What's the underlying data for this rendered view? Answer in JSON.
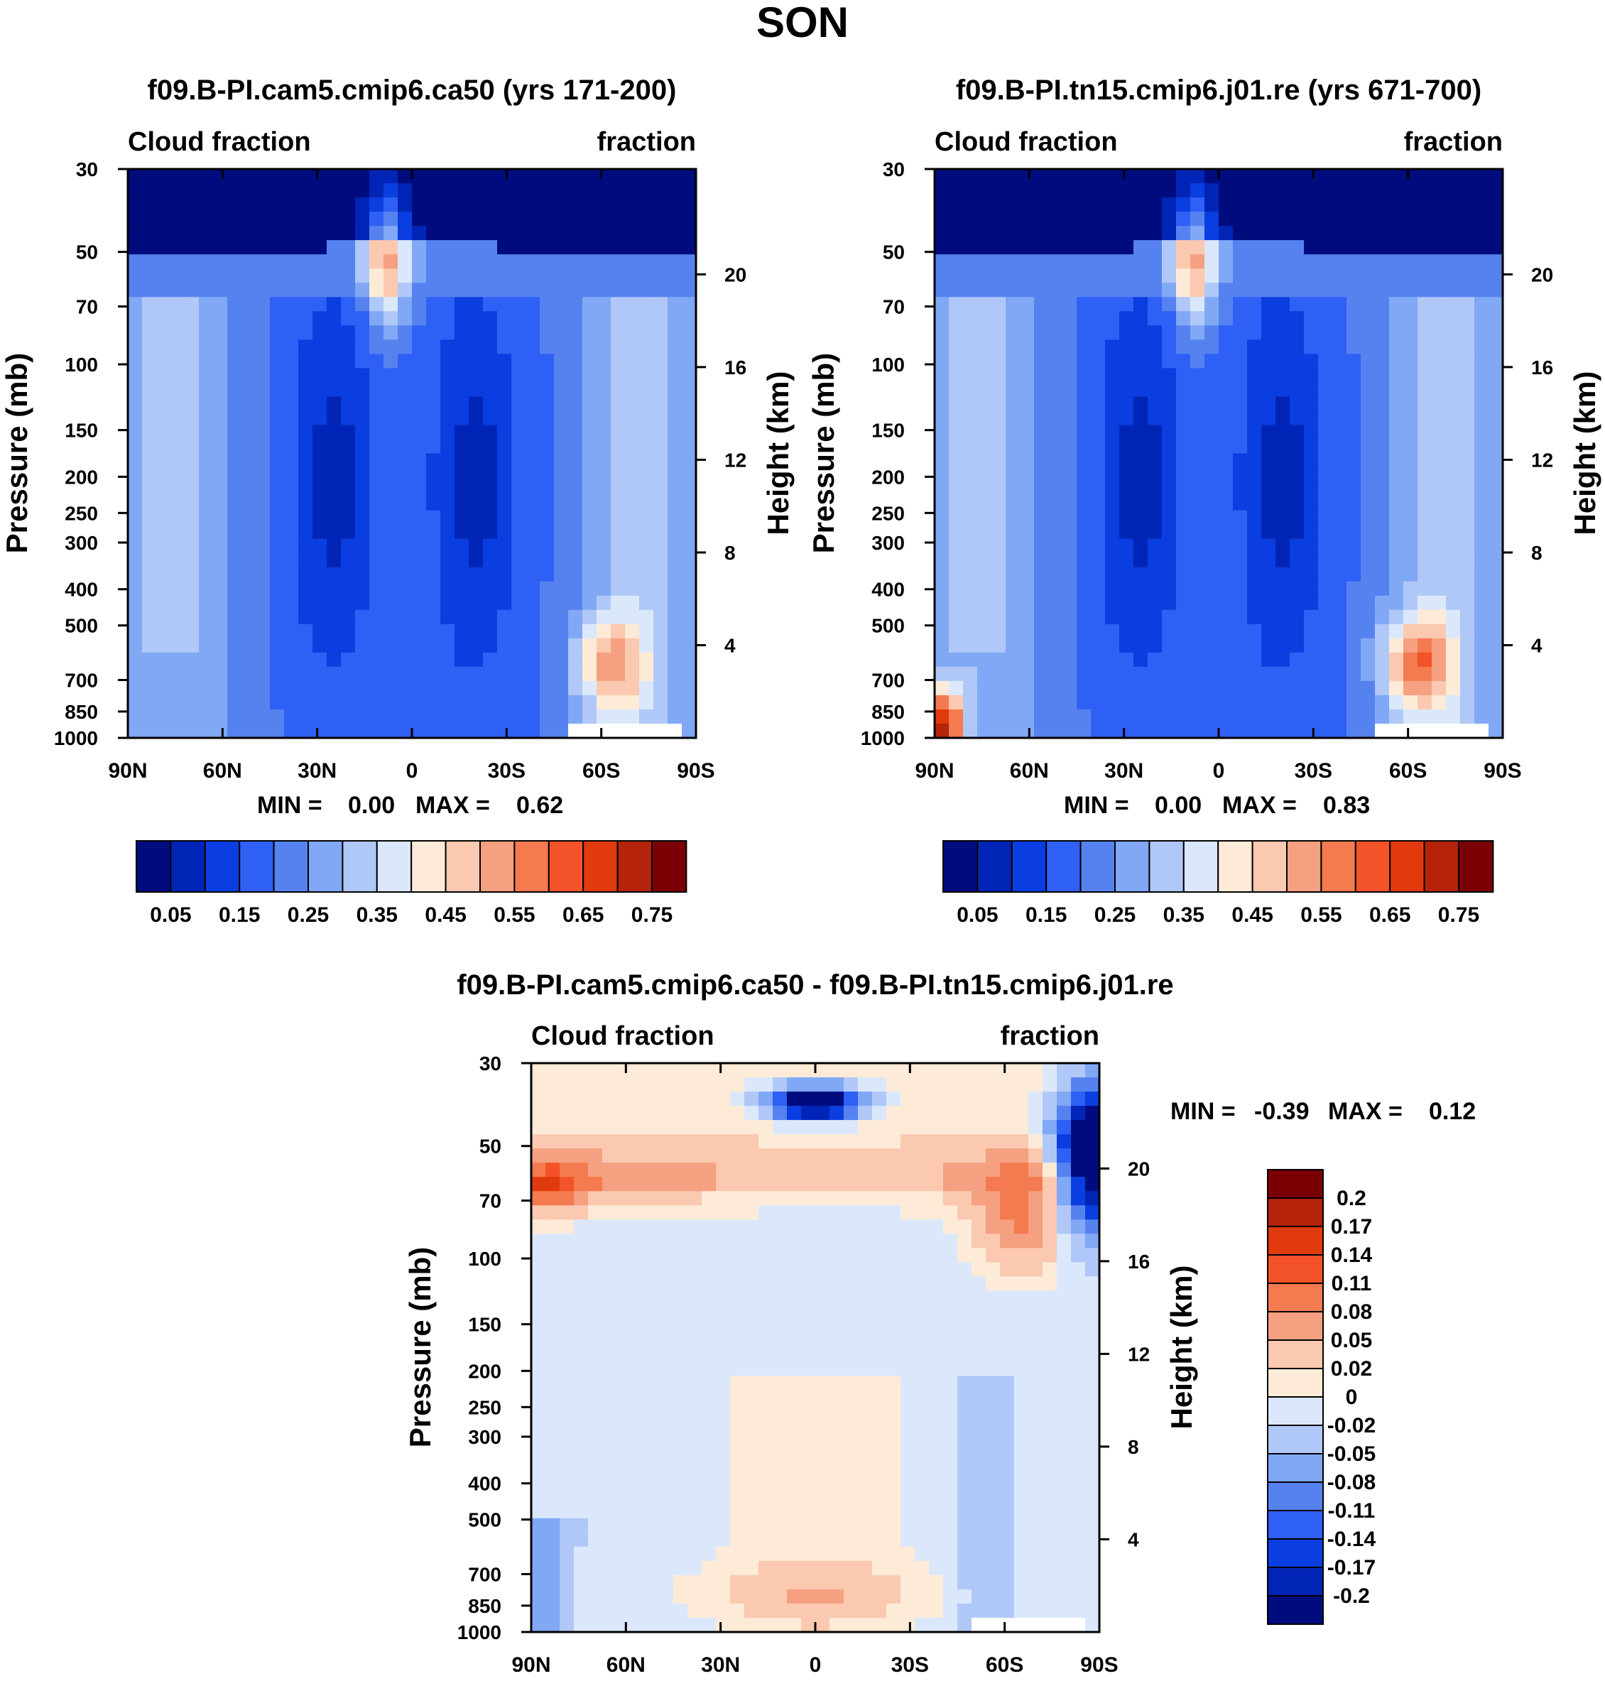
{
  "title": "SON",
  "colors": {
    "abs": [
      "#000c7d",
      "#0025b6",
      "#0a3ee0",
      "#2f60f5",
      "#5682f0",
      "#80a8f5",
      "#b0c8f8",
      "#dbe8fb",
      "#fdebd8",
      "#fbc8b0",
      "#f5a080",
      "#f47a50",
      "#f45228",
      "#e03a0e",
      "#b4230a",
      "#7a0006"
    ],
    "diff": [
      "#000c7d",
      "#0025b6",
      "#0a3ee0",
      "#2f60f5",
      "#5682f0",
      "#80a8f5",
      "#b0c8f8",
      "#dbe8fb",
      "#fdebd8",
      "#fbc8b0",
      "#f5a080",
      "#f47a50",
      "#f45228",
      "#e03a0e",
      "#b4230a",
      "#7a0006"
    ]
  },
  "chart_data": [
    {
      "type": "heatmap",
      "title": "f09.B-PI.cam5.cmip6.ca50 (yrs 171-200)",
      "left_label": "Cloud fraction",
      "right_label": "fraction",
      "ylabel": "Pressure (mb)",
      "y2label": "Height (km)",
      "x_ticks": [
        "90N",
        "60N",
        "30N",
        "0",
        "30S",
        "60S",
        "90S"
      ],
      "x_values": [
        90,
        60,
        30,
        0,
        -30,
        -60,
        -90
      ],
      "y_ticks": [
        "30",
        "50",
        "70",
        "100",
        "150",
        "200",
        "250",
        "300",
        "400",
        "500",
        "700",
        "850",
        "1000"
      ],
      "y_values": [
        30,
        50,
        70,
        100,
        150,
        200,
        250,
        300,
        400,
        500,
        700,
        850,
        1000
      ],
      "y2_ticks": [
        "20",
        "16",
        "12",
        "8",
        "4"
      ],
      "y2_values": [
        20,
        16,
        12,
        8,
        4
      ],
      "ylim": [
        1000,
        30
      ],
      "stats": {
        "min_label": "MIN =",
        "min": "0.00",
        "max_label": "MAX =",
        "max": "0.62"
      },
      "colorbar_labels": [
        "0.05",
        "0.15",
        "0.25",
        "0.35",
        "0.45",
        "0.55",
        "0.65",
        "0.75"
      ],
      "colorbar_levels": [
        0.05,
        0.1,
        0.15,
        0.2,
        0.25,
        0.3,
        0.35,
        0.4,
        0.45,
        0.5,
        0.55,
        0.6,
        0.65,
        0.7,
        0.75
      ]
    },
    {
      "type": "heatmap",
      "title": "f09.B-PI.tn15.cmip6.j01.re (yrs 671-700)",
      "left_label": "Cloud fraction",
      "right_label": "fraction",
      "ylabel": "Pressure (mb)",
      "y2label": "Height (km)",
      "x_ticks": [
        "90N",
        "60N",
        "30N",
        "0",
        "30S",
        "60S",
        "90S"
      ],
      "x_values": [
        90,
        60,
        30,
        0,
        -30,
        -60,
        -90
      ],
      "y_ticks": [
        "30",
        "50",
        "70",
        "100",
        "150",
        "200",
        "250",
        "300",
        "400",
        "500",
        "700",
        "850",
        "1000"
      ],
      "y_values": [
        30,
        50,
        70,
        100,
        150,
        200,
        250,
        300,
        400,
        500,
        700,
        850,
        1000
      ],
      "y2_ticks": [
        "20",
        "16",
        "12",
        "8",
        "4"
      ],
      "y2_values": [
        20,
        16,
        12,
        8,
        4
      ],
      "ylim": [
        1000,
        30
      ],
      "stats": {
        "min_label": "MIN =",
        "min": "0.00",
        "max_label": "MAX =",
        "max": "0.83"
      },
      "colorbar_labels": [
        "0.05",
        "0.15",
        "0.25",
        "0.35",
        "0.45",
        "0.55",
        "0.65",
        "0.75"
      ],
      "colorbar_levels": [
        0.05,
        0.1,
        0.15,
        0.2,
        0.25,
        0.3,
        0.35,
        0.4,
        0.45,
        0.5,
        0.55,
        0.6,
        0.65,
        0.7,
        0.75
      ]
    },
    {
      "type": "heatmap",
      "title": "f09.B-PI.cam5.cmip6.ca50 - f09.B-PI.tn15.cmip6.j01.re",
      "left_label": "Cloud fraction",
      "right_label": "fraction",
      "ylabel": "Pressure (mb)",
      "y2label": "Height (km)",
      "x_ticks": [
        "90N",
        "60N",
        "30N",
        "0",
        "30S",
        "60S",
        "90S"
      ],
      "x_values": [
        90,
        60,
        30,
        0,
        -30,
        -60,
        -90
      ],
      "y_ticks": [
        "30",
        "50",
        "70",
        "100",
        "150",
        "200",
        "250",
        "300",
        "400",
        "500",
        "700",
        "850",
        "1000"
      ],
      "y_values": [
        30,
        50,
        70,
        100,
        150,
        200,
        250,
        300,
        400,
        500,
        700,
        850,
        1000
      ],
      "y2_ticks": [
        "20",
        "16",
        "12",
        "8",
        "4"
      ],
      "y2_values": [
        20,
        16,
        12,
        8,
        4
      ],
      "ylim": [
        1000,
        30
      ],
      "stats": {
        "min_label": "MIN =",
        "min": "-0.39",
        "max_label": "MAX =",
        "max": "0.12"
      },
      "colorbar_labels": [
        "0.2",
        "0.17",
        "0.14",
        "0.11",
        "0.08",
        "0.05",
        "0.02",
        "0",
        "-0.02",
        "-0.05",
        "-0.08",
        "-0.11",
        "-0.14",
        "-0.17",
        "-0.2"
      ],
      "colorbar_levels": [
        0.2,
        0.17,
        0.14,
        0.11,
        0.08,
        0.05,
        0.02,
        0,
        -0.02,
        -0.05,
        -0.08,
        -0.11,
        -0.14,
        -0.17,
        -0.2
      ]
    }
  ]
}
